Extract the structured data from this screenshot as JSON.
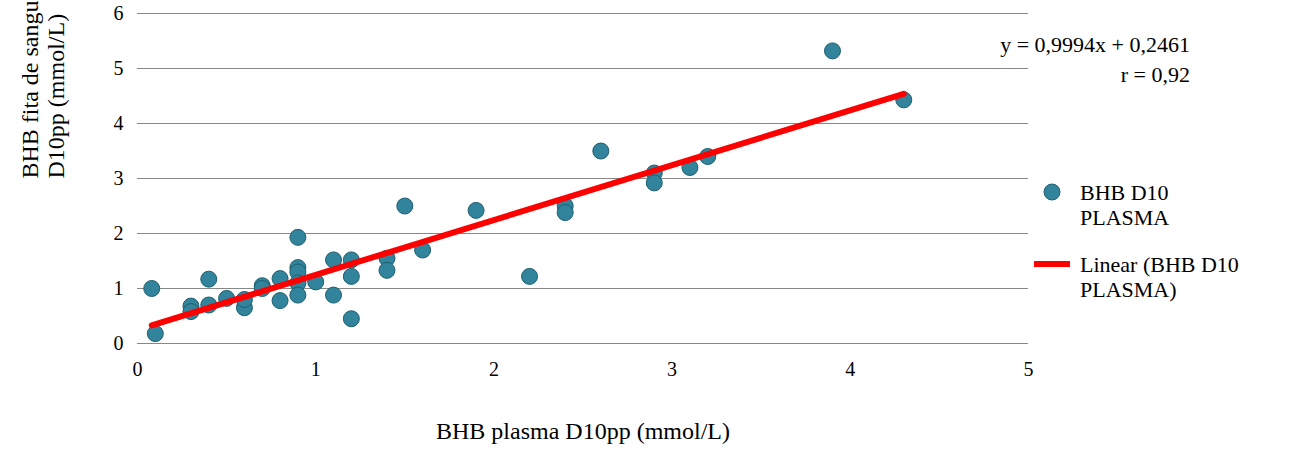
{
  "chart_data": {
    "type": "scatter",
    "x_label": "BHB plasma D10pp (mmol/L)",
    "y_label": [
      "BHB fita de sangue",
      "D10pp (mmol/L)"
    ],
    "annotations": [
      "y = 0,9994x + 0,2461",
      "r = 0,92"
    ],
    "xlim": [
      0,
      5
    ],
    "xticks": [
      0,
      1,
      2,
      3,
      4,
      5
    ],
    "ylim": [
      0,
      6
    ],
    "yticks": [
      0,
      1,
      2,
      3,
      4,
      5,
      6
    ],
    "grid": true,
    "legend": "right",
    "series": [
      {
        "name": "BHB D10 PLASMA",
        "type": "scatter",
        "marker": "circle",
        "color": "#31849b",
        "x": [
          0.08,
          0.1,
          0.3,
          0.3,
          0.4,
          0.4,
          0.5,
          0.6,
          0.6,
          0.7,
          0.7,
          0.8,
          0.8,
          0.9,
          0.9,
          0.9,
          0.9,
          0.9,
          1.0,
          1.1,
          1.1,
          1.2,
          1.2,
          1.2,
          1.4,
          1.4,
          1.5,
          1.6,
          1.9,
          2.2,
          2.4,
          2.4,
          2.6,
          2.9,
          2.9,
          3.1,
          3.2,
          3.9,
          4.3
        ],
        "values": [
          1.0,
          0.18,
          0.68,
          0.58,
          1.17,
          0.7,
          0.82,
          0.65,
          0.8,
          1.05,
          1.0,
          0.78,
          1.18,
          1.93,
          1.38,
          1.3,
          1.1,
          0.88,
          1.12,
          1.52,
          0.88,
          1.52,
          1.22,
          0.45,
          1.55,
          1.33,
          2.5,
          1.7,
          2.42,
          1.22,
          2.5,
          2.38,
          3.5,
          3.1,
          2.92,
          3.2,
          3.4,
          5.32,
          4.43
        ]
      },
      {
        "name": "Linear (BHB D10 PLASMA)",
        "type": "line",
        "line_style": "solid",
        "color": "#ff0000",
        "x": [
          0.08,
          4.3
        ],
        "values": [
          0.33,
          4.54
        ]
      }
    ]
  }
}
